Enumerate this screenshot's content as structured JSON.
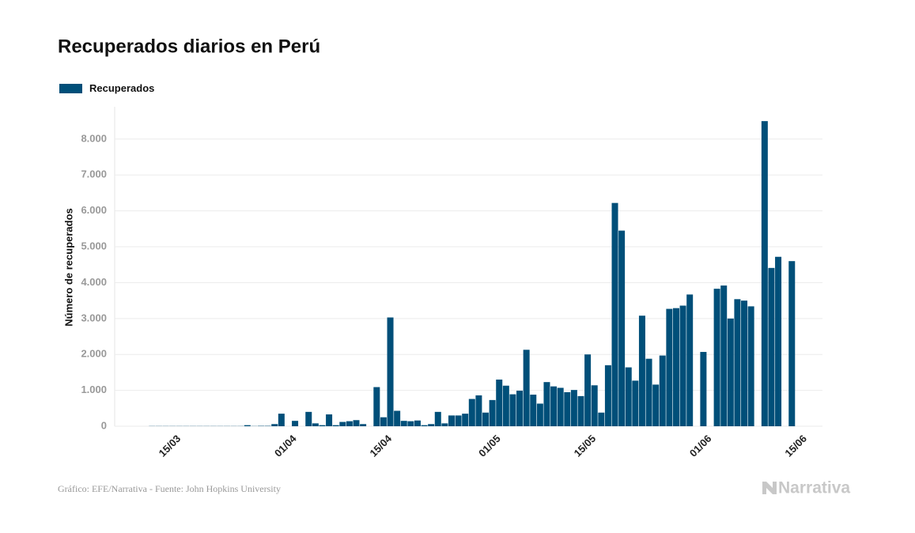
{
  "chart_data": {
    "type": "bar",
    "title": "Recuperados diarios en Perú",
    "source": "Gráfico: EFE/Narrativa - Fuente: John Hopkins University",
    "logo": "Narrativa",
    "y_label": "Número de recuperados",
    "series": [
      {
        "name": "Recuperados",
        "color": "#004f79",
        "values": [
          null,
          null,
          null,
          null,
          null,
          5,
          5,
          5,
          5,
          5,
          5,
          5,
          5,
          5,
          5,
          5,
          5,
          5,
          5,
          30,
          5,
          10,
          10,
          60,
          350,
          0,
          150,
          0,
          400,
          80,
          30,
          330,
          30,
          120,
          140,
          170,
          60,
          0,
          1090,
          250,
          3030,
          430,
          150,
          140,
          160,
          30,
          60,
          400,
          80,
          300,
          300,
          350,
          760,
          860,
          380,
          730,
          1300,
          1130,
          890,
          990,
          2130,
          880,
          630,
          1230,
          1110,
          1070,
          950,
          1010,
          840,
          2000,
          1140,
          380,
          1700,
          6220,
          5450,
          1640,
          1270,
          3080,
          1880,
          1160,
          1970,
          3270,
          3290,
          3360,
          3670,
          null,
          2070,
          null,
          3830,
          3920,
          3000,
          3540,
          3500,
          3340,
          null,
          8500,
          4410,
          4720,
          null,
          4600,
          null,
          null,
          null,
          null
        ]
      }
    ],
    "categories": [
      null,
      null,
      null,
      null,
      null,
      null,
      null,
      null,
      null,
      "15/03",
      null,
      null,
      null,
      null,
      null,
      null,
      null,
      null,
      null,
      null,
      null,
      null,
      null,
      null,
      null,
      null,
      "01/04",
      null,
      null,
      null,
      null,
      null,
      null,
      null,
      null,
      null,
      null,
      null,
      null,
      null,
      "15/04",
      null,
      null,
      null,
      null,
      null,
      null,
      null,
      null,
      null,
      null,
      null,
      null,
      null,
      null,
      null,
      "01/05",
      null,
      null,
      null,
      null,
      null,
      null,
      null,
      null,
      null,
      null,
      null,
      null,
      null,
      "15/05",
      null,
      null,
      null,
      null,
      null,
      null,
      null,
      null,
      null,
      null,
      null,
      null,
      null,
      null,
      null,
      null,
      "01/06",
      null,
      null,
      null,
      null,
      null,
      null,
      null,
      null,
      null,
      null,
      null,
      null,
      null,
      "15/06",
      null,
      null
    ],
    "ylim": [
      0,
      8900
    ],
    "yticks": [
      0,
      {
        "value": 1000,
        "label": "1.000"
      },
      {
        "value": 2000,
        "label": "2.000"
      },
      {
        "value": 3000,
        "label": "3.000"
      },
      {
        "value": 4000,
        "label": "4.000"
      },
      {
        "value": 5000,
        "label": "5.000"
      },
      {
        "value": 6000,
        "label": "6.000"
      },
      {
        "value": 7000,
        "label": "7.000"
      },
      {
        "value": 8000,
        "label": "8.000"
      }
    ],
    "grid": true
  }
}
